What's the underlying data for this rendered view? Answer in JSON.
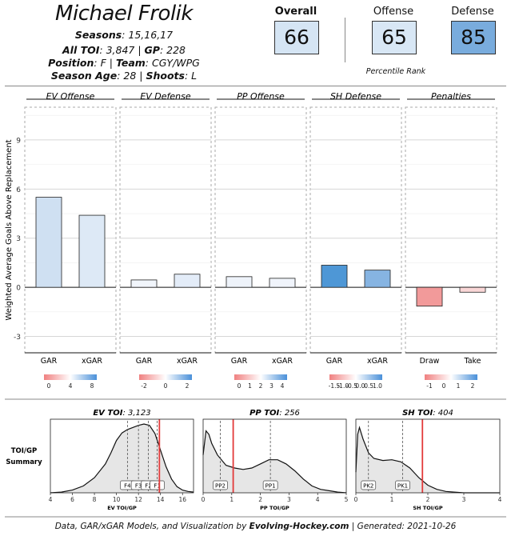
{
  "player": {
    "name": "Michael Frolik",
    "seasons_label": "Seasons",
    "seasons": "15,16,17",
    "toi_label": "All TOI",
    "toi": "3,847",
    "gp_label": "GP",
    "gp": "228",
    "position_label": "Position",
    "position": "F",
    "team_label": "Team",
    "team": "CGY/WPG",
    "age_label": "Season Age",
    "age": "28",
    "shoots_label": "Shoots",
    "shoots": "L"
  },
  "ranks": {
    "overall_label": "Overall",
    "overall": "66",
    "offense_label": "Offense",
    "offense": "65",
    "defense_label": "Defense",
    "defense": "85",
    "caption": "Percentile Rank",
    "colors": {
      "overall": "#d5e5f4",
      "offense": "#d8e7f5",
      "defense": "#79acdd"
    }
  },
  "chart_data": [
    {
      "type": "bar",
      "ylabel": "Weighted Average Goals Above Replacement",
      "ylim": [
        -4,
        11
      ],
      "yticks": [
        -3,
        0,
        3,
        6,
        9
      ],
      "grid": true,
      "panels": [
        {
          "title": "EV Offense",
          "categories": [
            "GAR",
            "xGAR"
          ],
          "values": [
            5.5,
            4.4
          ],
          "colors": [
            "#cfe0f2",
            "#dde9f6"
          ],
          "scale": {
            "ticks": [
              "0",
              "4",
              "8"
            ],
            "from": "#f08080",
            "to": "#4a90d9"
          }
        },
        {
          "title": "EV Defense",
          "categories": [
            "GAR",
            "xGAR"
          ],
          "values": [
            0.45,
            0.8
          ],
          "colors": [
            "#f1f5fb",
            "#e3ecf8"
          ],
          "scale": {
            "ticks": [
              "-2",
              "0",
              "2"
            ],
            "from": "#f08080",
            "to": "#4a90d9"
          }
        },
        {
          "title": "PP Offense",
          "categories": [
            "GAR",
            "xGAR"
          ],
          "values": [
            0.65,
            0.55
          ],
          "colors": [
            "#eef3fa",
            "#f0f4fb"
          ],
          "scale": {
            "ticks": [
              "0",
              "1",
              "2",
              "3",
              "4"
            ],
            "from": "#f08080",
            "to": "#4a90d9"
          }
        },
        {
          "title": "SH Defense",
          "categories": [
            "GAR",
            "xGAR"
          ],
          "values": [
            1.35,
            1.05
          ],
          "colors": [
            "#4e97d6",
            "#86b4e2"
          ],
          "scale": {
            "ticks": [
              "-1.5",
              "-1.0",
              "-0.5",
              "0.0",
              "0.5",
              "1.0"
            ],
            "from": "#f08080",
            "to": "#4a90d9"
          }
        },
        {
          "title": "Penalties",
          "categories": [
            "Draw",
            "Take"
          ],
          "values": [
            -1.15,
            -0.3
          ],
          "colors": [
            "#f29a9a",
            "#fad7d7"
          ],
          "scale": {
            "ticks": [
              "-1",
              "0",
              "1",
              "2"
            ],
            "from": "#f08080",
            "to": "#4a90d9"
          }
        }
      ]
    },
    {
      "type": "area",
      "title": "TOI/GP Summary",
      "panels": [
        {
          "title_bold": "EV TOI",
          "title_rest": "3,123",
          "xlabel": "EV TOI/GP",
          "xlim": [
            4,
            17
          ],
          "xticks": [
            4,
            6,
            8,
            10,
            12,
            14,
            16
          ],
          "player_value": 13.9,
          "refs": [
            {
              "label": "F4",
              "x": 11.0
            },
            {
              "label": "F3",
              "x": 12.0
            },
            {
              "label": "F2",
              "x": 12.9
            },
            {
              "label": "F1",
              "x": 13.7
            }
          ],
          "density_x": [
            4.0,
            5.0,
            6.0,
            7.0,
            8.0,
            9.0,
            9.5,
            10.0,
            10.5,
            11.0,
            11.5,
            12.0,
            12.5,
            13.0,
            13.5,
            14.0,
            14.5,
            15.0,
            15.5,
            16.0,
            16.5,
            17.0
          ],
          "density_y": [
            0.0,
            0.01,
            0.04,
            0.1,
            0.22,
            0.42,
            0.58,
            0.76,
            0.87,
            0.92,
            0.95,
            0.98,
            1.0,
            0.98,
            0.86,
            0.62,
            0.38,
            0.2,
            0.09,
            0.04,
            0.02,
            0.01
          ]
        },
        {
          "title_bold": "PP TOI",
          "title_rest": "256",
          "xlabel": "PP TOI/GP",
          "xlim": [
            0,
            5
          ],
          "xticks": [
            0,
            1,
            2,
            3,
            4,
            5
          ],
          "player_value": 1.05,
          "refs": [
            {
              "label": "PP2",
              "x": 0.6
            },
            {
              "label": "PP1",
              "x": 2.35
            }
          ],
          "density_x": [
            0.0,
            0.1,
            0.2,
            0.3,
            0.5,
            0.8,
            1.1,
            1.4,
            1.7,
            2.0,
            2.3,
            2.6,
            2.9,
            3.2,
            3.5,
            3.8,
            4.1,
            4.4,
            4.7,
            5.0
          ],
          "density_y": [
            0.55,
            0.9,
            0.85,
            0.72,
            0.55,
            0.4,
            0.36,
            0.34,
            0.36,
            0.42,
            0.48,
            0.48,
            0.42,
            0.32,
            0.2,
            0.1,
            0.05,
            0.03,
            0.01,
            0.0
          ]
        },
        {
          "title_bold": "SH TOI",
          "title_rest": "404",
          "xlabel": "SH TOI/GP",
          "xlim": [
            0,
            4
          ],
          "xticks": [
            0,
            1,
            2,
            3,
            4
          ],
          "player_value": 1.85,
          "refs": [
            {
              "label": "PK2",
              "x": 0.35
            },
            {
              "label": "PK1",
              "x": 1.3
            }
          ],
          "density_x": [
            0.0,
            0.05,
            0.1,
            0.2,
            0.35,
            0.5,
            0.75,
            1.0,
            1.25,
            1.5,
            1.75,
            2.0,
            2.25,
            2.5,
            3.0,
            3.5,
            4.0
          ],
          "density_y": [
            0.3,
            0.85,
            0.95,
            0.78,
            0.58,
            0.5,
            0.47,
            0.48,
            0.45,
            0.36,
            0.22,
            0.11,
            0.05,
            0.02,
            0.0,
            0.0,
            0.0
          ]
        }
      ]
    }
  ],
  "footer": {
    "prefix": "Data, GAR/xGAR Models, and Visualization by ",
    "site": "Evolving-Hockey.com",
    "suffix": " | Generated: 2021-10-26"
  }
}
